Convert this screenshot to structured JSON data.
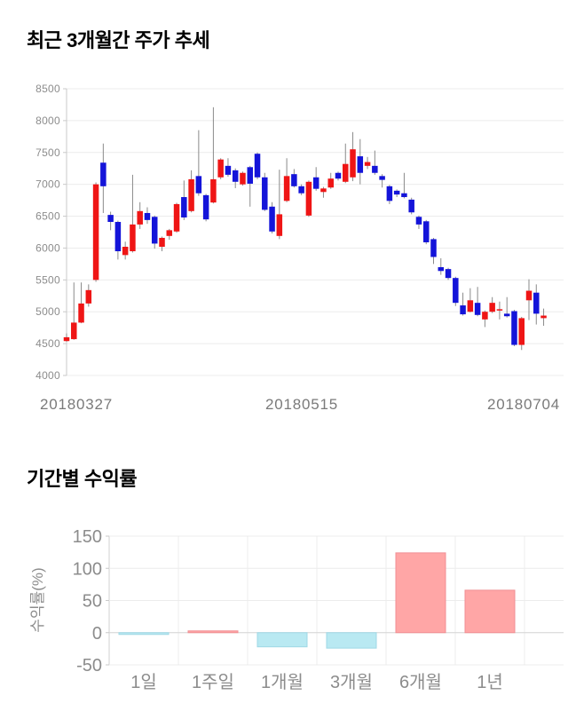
{
  "price_section": {
    "title": "최근 3개월간 주가 추세"
  },
  "returns_section": {
    "title": "기간별 수익률"
  },
  "chart_data": [
    {
      "type": "candlestick",
      "title": "최근 3개월간 주가 추세",
      "ylim": [
        4000,
        8500
      ],
      "y_ticks": [
        8500,
        8000,
        7500,
        7000,
        6500,
        6000,
        5500,
        5000,
        4500,
        4000
      ],
      "x_tick_labels": [
        "20180327",
        "20180515",
        "20180704"
      ],
      "grid": true,
      "up_color": "#ef1515",
      "down_color": "#1414d9",
      "wick_color": "#8a8a8a",
      "ohlc_order": "open,high,low,close",
      "candles_ohlc": [
        [
          4540,
          4660,
          4530,
          4600
        ],
        [
          4570,
          5460,
          4560,
          4830
        ],
        [
          4830,
          5460,
          4820,
          5130
        ],
        [
          5130,
          5430,
          5080,
          5340
        ],
        [
          5500,
          7030,
          5470,
          7000
        ],
        [
          7340,
          7640,
          6550,
          6970
        ],
        [
          6520,
          6570,
          6280,
          6410
        ],
        [
          6410,
          6430,
          5820,
          5950
        ],
        [
          5890,
          6100,
          5820,
          6020
        ],
        [
          5950,
          7150,
          5930,
          6370
        ],
        [
          6370,
          6720,
          6300,
          6580
        ],
        [
          6550,
          6640,
          6380,
          6440
        ],
        [
          6490,
          6510,
          5990,
          6070
        ],
        [
          6020,
          6180,
          5950,
          6160
        ],
        [
          6190,
          6300,
          6130,
          6280
        ],
        [
          6260,
          6710,
          6240,
          6690
        ],
        [
          6800,
          7060,
          6440,
          6480
        ],
        [
          6580,
          7220,
          6560,
          7080
        ],
        [
          7130,
          7850,
          6820,
          6860
        ],
        [
          6830,
          6850,
          6420,
          6450
        ],
        [
          6715,
          8210,
          6700,
          7080
        ],
        [
          7110,
          7410,
          7080,
          7390
        ],
        [
          7290,
          7410,
          7120,
          7150
        ],
        [
          7220,
          7250,
          6940,
          7040
        ],
        [
          7000,
          7200,
          6980,
          7180
        ],
        [
          7270,
          7290,
          6650,
          7010
        ],
        [
          7480,
          7500,
          7080,
          7110
        ],
        [
          7110,
          7180,
          6580,
          6600
        ],
        [
          6650,
          6720,
          6230,
          6260
        ],
        [
          6190,
          7230,
          6140,
          6530
        ],
        [
          6740,
          7410,
          6720,
          7130
        ],
        [
          7160,
          7240,
          6950,
          6970
        ],
        [
          6970,
          7000,
          6830,
          6860
        ],
        [
          6510,
          7060,
          6490,
          7040
        ],
        [
          7110,
          7270,
          6900,
          6930
        ],
        [
          6880,
          6960,
          6790,
          6935
        ],
        [
          6950,
          7180,
          6930,
          7090
        ],
        [
          7180,
          7200,
          7060,
          7090
        ],
        [
          7040,
          7640,
          7020,
          7320
        ],
        [
          7110,
          7820,
          7050,
          7550
        ],
        [
          7440,
          7710,
          7000,
          7180
        ],
        [
          7290,
          7430,
          7240,
          7350
        ],
        [
          7290,
          7530,
          7150,
          7180
        ],
        [
          7130,
          7160,
          6950,
          7070
        ],
        [
          6970,
          6990,
          6690,
          6740
        ],
        [
          6900,
          6920,
          6800,
          6840
        ],
        [
          6860,
          7180,
          6780,
          6800
        ],
        [
          6760,
          6790,
          6530,
          6560
        ],
        [
          6490,
          6510,
          6300,
          6370
        ],
        [
          6420,
          6440,
          6060,
          6090
        ],
        [
          6140,
          6160,
          5750,
          5860
        ],
        [
          5700,
          5840,
          5580,
          5640
        ],
        [
          5670,
          5690,
          5500,
          5530
        ],
        [
          5530,
          5550,
          5090,
          5140
        ],
        [
          5100,
          5300,
          4940,
          4960
        ],
        [
          5000,
          5370,
          4990,
          5180
        ],
        [
          5140,
          5390,
          4930,
          4950
        ],
        [
          4880,
          5020,
          4760,
          5000
        ],
        [
          5000,
          5230,
          4980,
          5140
        ],
        [
          5030,
          5160,
          4880,
          5040
        ],
        [
          4970,
          5230,
          4910,
          4930
        ],
        [
          5010,
          5030,
          4460,
          4480
        ],
        [
          4480,
          4920,
          4400,
          4900
        ],
        [
          5180,
          5510,
          4870,
          5330
        ],
        [
          5300,
          5430,
          4800,
          4970
        ],
        [
          4900,
          5050,
          4780,
          4940
        ]
      ]
    },
    {
      "type": "bar",
      "title": "기간별 수익률",
      "ylabel": "수익률(%)",
      "categories": [
        "1일",
        "1주일",
        "1개월",
        "3개월",
        "6개월",
        "1년"
      ],
      "values": [
        -1,
        1,
        -22,
        -24,
        124,
        66
      ],
      "ylim": [
        -50,
        150
      ],
      "y_ticks": [
        150,
        100,
        50,
        0,
        -50
      ],
      "grid": true,
      "positive_color": "#ffa6a6",
      "positive_border": "#f08f94",
      "negative_color": "#b9e9f2",
      "negative_border": "#9fd8e5"
    }
  ]
}
